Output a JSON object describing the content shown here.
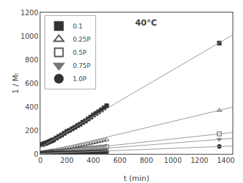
{
  "chart_data": {
    "type": "scatter",
    "annotation": "40°C",
    "xlabel": "t (min)",
    "ylabel": "1 / Mₜ",
    "xlim": [
      0,
      1450
    ],
    "ylim": [
      0,
      1200
    ],
    "xticks": [
      0,
      200,
      400,
      600,
      800,
      1000,
      1200,
      1400
    ],
    "yticks": [
      0,
      200,
      400,
      600,
      800,
      1000,
      1200
    ],
    "grid": false,
    "legend": "upper left",
    "series": [
      {
        "name": "0.1",
        "type": "scatter",
        "marker": "square",
        "color": "#333333",
        "x": [
          10,
          20,
          30,
          40,
          50,
          60,
          70,
          80,
          90,
          100,
          120,
          140,
          160,
          180,
          200,
          220,
          240,
          260,
          280,
          300,
          320,
          340,
          360,
          380,
          400,
          420,
          440,
          460,
          480,
          500,
          1350
        ],
        "values": [
          80,
          82,
          88,
          90,
          95,
          100,
          105,
          110,
          115,
          120,
          135,
          148,
          160,
          175,
          190,
          200,
          213,
          225,
          240,
          252,
          268,
          280,
          296,
          312,
          330,
          343,
          358,
          373,
          390,
          408,
          940
        ]
      },
      {
        "type": "line",
        "line_style": "solid",
        "color": "#999999",
        "x": [
          0,
          1450
        ],
        "values": [
          55,
          1009.1
        ]
      },
      {
        "name": "0.25P",
        "type": "scatter",
        "marker": "triangle-up-open",
        "color": "#555555",
        "x": [
          10,
          20,
          30,
          40,
          50,
          60,
          70,
          80,
          90,
          100,
          120,
          140,
          160,
          180,
          200,
          220,
          240,
          260,
          280,
          300,
          320,
          340,
          360,
          380,
          400,
          420,
          440,
          460,
          480,
          500,
          1350
        ],
        "values": [
          10,
          12,
          14,
          16,
          18,
          20,
          22,
          24,
          26,
          28,
          33,
          37,
          42,
          46,
          50,
          55,
          59,
          63,
          68,
          72,
          76,
          80,
          85,
          90,
          95,
          100,
          105,
          110,
          115,
          120,
          370
        ]
      },
      {
        "type": "line",
        "line_style": "solid",
        "color": "#999999",
        "x": [
          0,
          1450
        ],
        "values": [
          8,
          396.6
        ]
      },
      {
        "name": "0.5P",
        "type": "scatter",
        "marker": "square-open",
        "color": "#555555",
        "x": [
          10,
          20,
          30,
          40,
          50,
          60,
          70,
          80,
          90,
          100,
          120,
          140,
          160,
          180,
          200,
          220,
          240,
          260,
          280,
          300,
          320,
          340,
          360,
          380,
          400,
          420,
          440,
          460,
          480,
          500,
          1350
        ],
        "values": [
          5,
          7,
          8,
          9,
          10,
          11,
          12,
          13,
          14,
          16,
          18,
          20,
          22,
          25,
          27,
          29,
          31,
          33,
          35,
          37,
          39,
          42,
          44,
          46,
          48,
          50,
          52,
          55,
          57,
          60,
          170
        ]
      },
      {
        "type": "line",
        "line_style": "solid",
        "color": "#999999",
        "x": [
          0,
          1450
        ],
        "values": [
          5,
          181.9
        ]
      },
      {
        "name": "0.75P",
        "type": "scatter",
        "marker": "triangle-down",
        "color": "#777777",
        "x": [
          10,
          20,
          30,
          40,
          50,
          60,
          70,
          80,
          90,
          100,
          120,
          140,
          160,
          180,
          200,
          220,
          240,
          260,
          280,
          300,
          320,
          340,
          360,
          380,
          400,
          420,
          440,
          460,
          480,
          500,
          1350
        ],
        "values": [
          4,
          5,
          6,
          7,
          7,
          8,
          9,
          9,
          10,
          10,
          12,
          14,
          15,
          17,
          18,
          20,
          21,
          23,
          24,
          26,
          27,
          29,
          30,
          32,
          33,
          35,
          37,
          38,
          40,
          42,
          123
        ]
      },
      {
        "type": "line",
        "line_style": "solid",
        "color": "#999999",
        "x": [
          0,
          1450
        ],
        "values": [
          4,
          131.6
        ]
      },
      {
        "name": "1.0P",
        "type": "scatter",
        "marker": "circle",
        "color": "#333333",
        "x": [
          10,
          20,
          30,
          40,
          50,
          60,
          70,
          80,
          90,
          100,
          120,
          140,
          160,
          180,
          200,
          220,
          240,
          260,
          280,
          300,
          320,
          340,
          360,
          380,
          400,
          420,
          440,
          460,
          480,
          500,
          1350
        ],
        "values": [
          3,
          3,
          4,
          4,
          5,
          5,
          5,
          6,
          6,
          7,
          7,
          8,
          8,
          9,
          9,
          10,
          10,
          11,
          11,
          12,
          12,
          13,
          14,
          14,
          15,
          15,
          16,
          16,
          17,
          18,
          63
        ]
      },
      {
        "type": "line",
        "line_style": "solid",
        "color": "#999999",
        "x": [
          0,
          1450
        ],
        "values": [
          3,
          66.8
        ]
      }
    ]
  }
}
